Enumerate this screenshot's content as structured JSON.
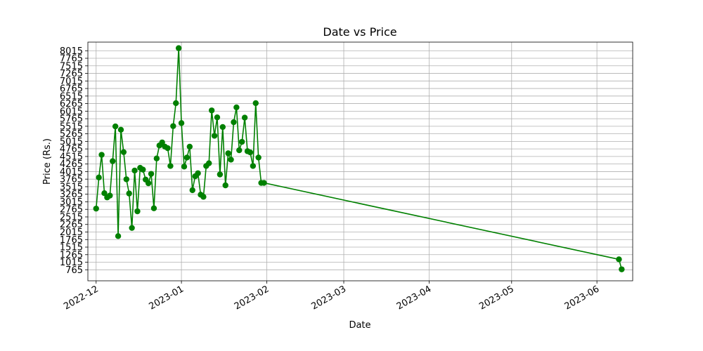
{
  "chart_data": {
    "type": "line",
    "title": "Date vs Price",
    "xlabel": "Date",
    "ylabel": "Price (Rs.)",
    "grid": true,
    "legend": "none",
    "color": "#008000",
    "x_range": [
      "2022-11-28",
      "2023-06-14"
    ],
    "ylim": [
      400,
      8300
    ],
    "x_ticks": [
      "2022-12",
      "2023-01",
      "2023-02",
      "2023-03",
      "2023-04",
      "2023-05",
      "2023-06"
    ],
    "y_ticks": [
      765,
      1015,
      1265,
      1515,
      1765,
      2015,
      2265,
      2515,
      2765,
      3015,
      3265,
      3515,
      3765,
      4015,
      4265,
      4515,
      4765,
      5015,
      5265,
      5515,
      5765,
      6015,
      6265,
      6515,
      6765,
      7015,
      7265,
      7515,
      7765,
      8015
    ],
    "series": [
      {
        "x": [
          "2022-12-01",
          "2022-12-02",
          "2022-12-03",
          "2022-12-04",
          "2022-12-05",
          "2022-12-06",
          "2022-12-07",
          "2022-12-08",
          "2022-12-09",
          "2022-12-10",
          "2022-12-11",
          "2022-12-12",
          "2022-12-13",
          "2022-12-14",
          "2022-12-15",
          "2022-12-16",
          "2022-12-17",
          "2022-12-18",
          "2022-12-19",
          "2022-12-20",
          "2022-12-21",
          "2022-12-22",
          "2022-12-23",
          "2022-12-24",
          "2022-12-25",
          "2022-12-26",
          "2022-12-27",
          "2022-12-28",
          "2022-12-29",
          "2022-12-30",
          "2022-12-31",
          "2023-01-01",
          "2023-01-02",
          "2023-01-03",
          "2023-01-04",
          "2023-01-05",
          "2023-01-06",
          "2023-01-07",
          "2023-01-08",
          "2023-01-09",
          "2023-01-10",
          "2023-01-11",
          "2023-01-12",
          "2023-01-13",
          "2023-01-14",
          "2023-01-15",
          "2023-01-16",
          "2023-01-17",
          "2023-01-18",
          "2023-01-19",
          "2023-01-20",
          "2023-01-21",
          "2023-01-22",
          "2023-01-23",
          "2023-01-24",
          "2023-01-25",
          "2023-01-26",
          "2023-01-27",
          "2023-01-28",
          "2023-01-29",
          "2023-01-30",
          "2023-01-31",
          "2023-06-09",
          "2023-06-10"
        ],
        "values": [
          2790,
          3820,
          4570,
          3300,
          3160,
          3220,
          4360,
          5510,
          1880,
          5400,
          4660,
          3760,
          3290,
          2150,
          4050,
          2700,
          4140,
          4080,
          3750,
          3630,
          3940,
          2800,
          4450,
          4880,
          4980,
          4840,
          4790,
          4200,
          5520,
          6280,
          8100,
          5620,
          4180,
          4480,
          4840,
          3400,
          3860,
          3960,
          3250,
          3180,
          4200,
          4290,
          6040,
          5200,
          5810,
          3920,
          5490,
          3560,
          4620,
          4410,
          5650,
          6140,
          4720,
          5000,
          5800,
          4690,
          4650,
          4200,
          6280,
          4480,
          3640,
          3640,
          1110,
          780
        ]
      }
    ]
  }
}
